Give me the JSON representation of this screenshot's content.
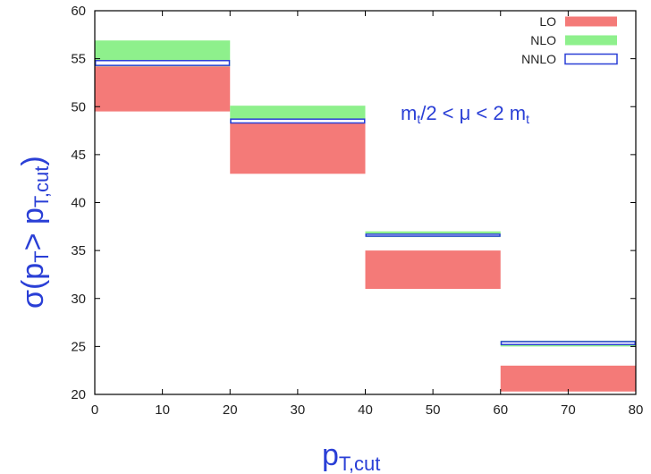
{
  "chart_data": {
    "type": "bar",
    "title": "",
    "xlabel": "p",
    "xlabel_sub": "T,cut",
    "ylabel_parts": [
      "σ(p",
      "T",
      "> p",
      "T,cut",
      ")"
    ],
    "xlim": [
      0,
      80
    ],
    "ylim": [
      20,
      60
    ],
    "x_ticks": [
      0,
      10,
      20,
      30,
      40,
      50,
      60,
      70,
      80
    ],
    "y_ticks": [
      20,
      25,
      30,
      35,
      40,
      45,
      50,
      55,
      60
    ],
    "grid": false,
    "legend_position": "top-right",
    "bins": [
      [
        0,
        20
      ],
      [
        20,
        40
      ],
      [
        40,
        60
      ],
      [
        60,
        80
      ]
    ],
    "series": [
      {
        "name": "LO",
        "color": "#f47a78",
        "style": "filled-band",
        "bands": [
          [
            49.5,
            54.2
          ],
          [
            43.0,
            48.3
          ],
          [
            31.0,
            35.0
          ],
          [
            20.3,
            23.0
          ]
        ]
      },
      {
        "name": "NLO",
        "color": "#8ef08c",
        "style": "filled-band",
        "bands": [
          [
            54.2,
            56.9
          ],
          [
            48.3,
            50.1
          ],
          [
            36.4,
            37.0
          ],
          [
            25.0,
            25.6
          ]
        ]
      },
      {
        "name": "NNLO",
        "color": "#2a3fd6",
        "style": "outlined-band",
        "bands": [
          [
            54.3,
            54.8
          ],
          [
            48.3,
            48.7
          ],
          [
            36.5,
            36.7
          ],
          [
            25.2,
            25.5
          ]
        ]
      }
    ],
    "annotation": {
      "parts": [
        "m",
        "t",
        "/2 < μ < 2 m",
        "t"
      ]
    }
  }
}
